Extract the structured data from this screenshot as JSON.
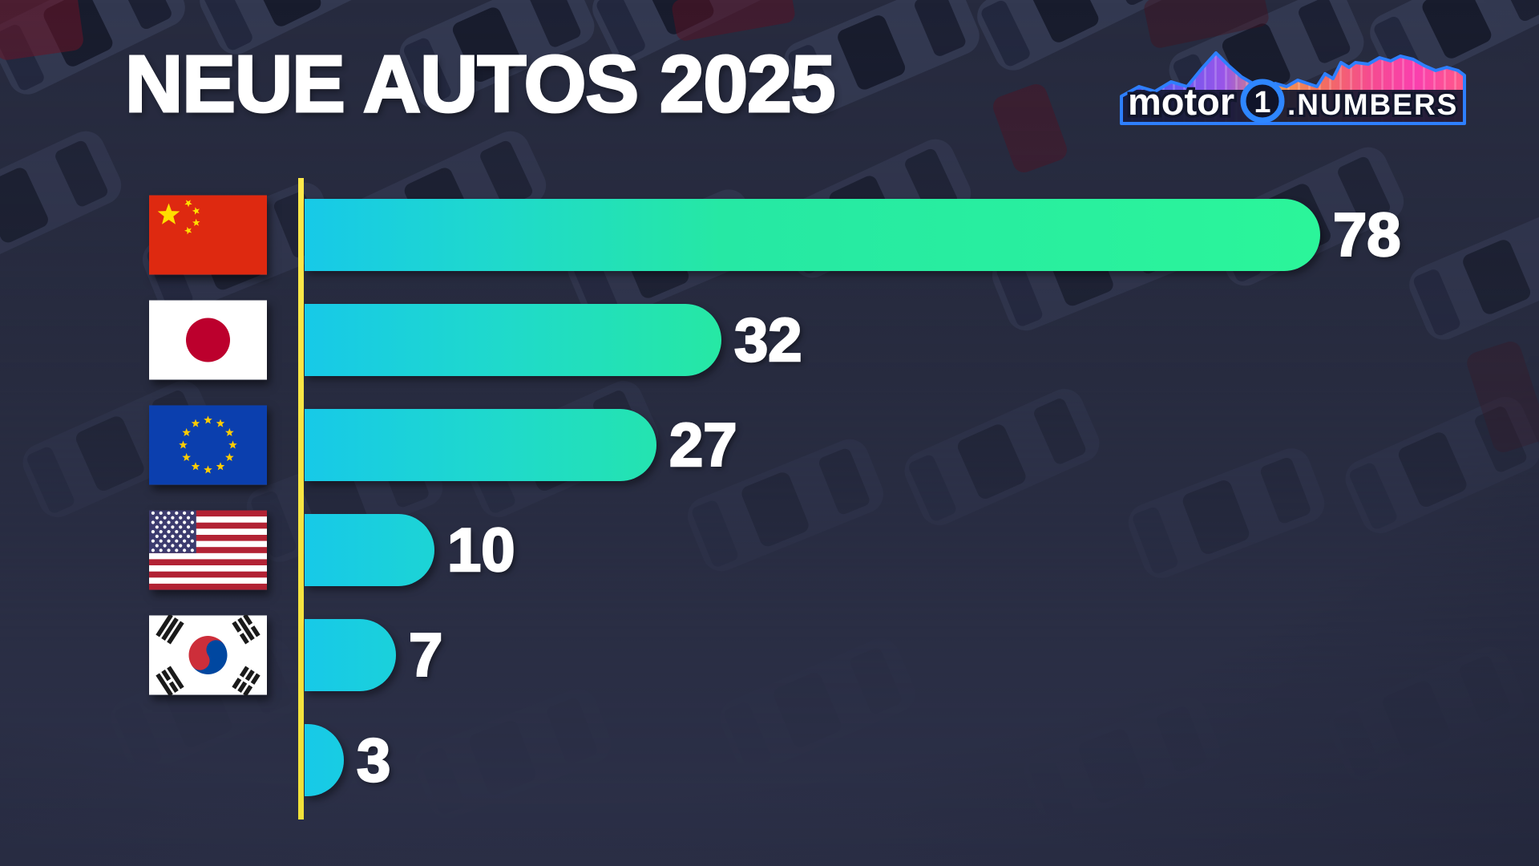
{
  "title": "NEUE AUTOS 2025",
  "logo": {
    "brand": "motor",
    "badge": "1",
    "separator": ".",
    "suffix": "NUMBERS"
  },
  "chart_data": {
    "type": "bar",
    "orientation": "horizontal",
    "title": "NEUE AUTOS 2025",
    "max_value": 78,
    "categories": [
      "China",
      "Japan",
      "European Union",
      "United States",
      "South Korea",
      ""
    ],
    "rows": [
      {
        "flag": "china",
        "label": "China",
        "value": 78
      },
      {
        "flag": "japan",
        "label": "Japan",
        "value": 32
      },
      {
        "flag": "eu",
        "label": "European Union",
        "value": 27
      },
      {
        "flag": "usa",
        "label": "United States",
        "value": 10
      },
      {
        "flag": "south-korea",
        "label": "South Korea",
        "value": 7
      },
      {
        "flag": "none",
        "label": "",
        "value": 3
      }
    ],
    "values": [
      78,
      32,
      27,
      10,
      7,
      3
    ],
    "legend": "none",
    "gridlines": false
  },
  "colors": {
    "background": "#272b3f",
    "axis_line": "#f2e23a",
    "bar_gradient_stops": [
      [
        "#17c9e8",
        "0px"
      ],
      [
        "#1fd9cc",
        "240px"
      ],
      [
        "#26e8a4",
        "520px"
      ],
      [
        "#2bf59a",
        "1260px"
      ]
    ],
    "value_text": "#ffffff",
    "title_text": "#ffffff",
    "logo_outline": "#2e7fff"
  }
}
